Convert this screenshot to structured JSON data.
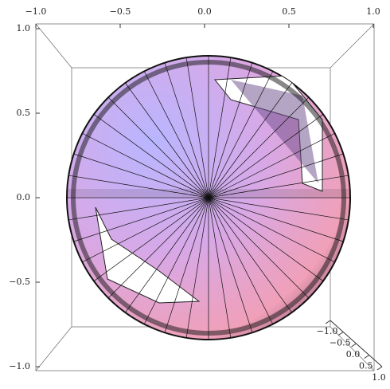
{
  "chart_data": {
    "type": "surface3d",
    "xlim": [
      -1,
      1
    ],
    "ylim": [
      -1,
      1
    ],
    "zlim": [
      -1,
      1
    ],
    "xticks": [
      {
        "value": -1,
        "label": "−1.0"
      },
      {
        "value": -0.5,
        "label": "−0.5"
      },
      {
        "value": 0,
        "label": "0.0"
      },
      {
        "value": 0.5,
        "label": "0.5"
      },
      {
        "value": 1,
        "label": "1.0"
      }
    ],
    "yticks": [
      {
        "value": -1,
        "label": "−1.0"
      },
      {
        "value": -0.5,
        "label": "−0.5"
      },
      {
        "value": 0,
        "label": "0.0"
      },
      {
        "value": 0.5,
        "label": "0.5"
      },
      {
        "value": 1,
        "label": "1.0"
      }
    ],
    "zticks": [
      {
        "value": -1,
        "label": "−1.0"
      },
      {
        "value": -0.5,
        "label": "−0.5"
      },
      {
        "value": 0,
        "label": "0.0"
      },
      {
        "value": 0.5,
        "label": "0.5"
      },
      {
        "value": 1,
        "label": "1.0"
      }
    ]
  }
}
